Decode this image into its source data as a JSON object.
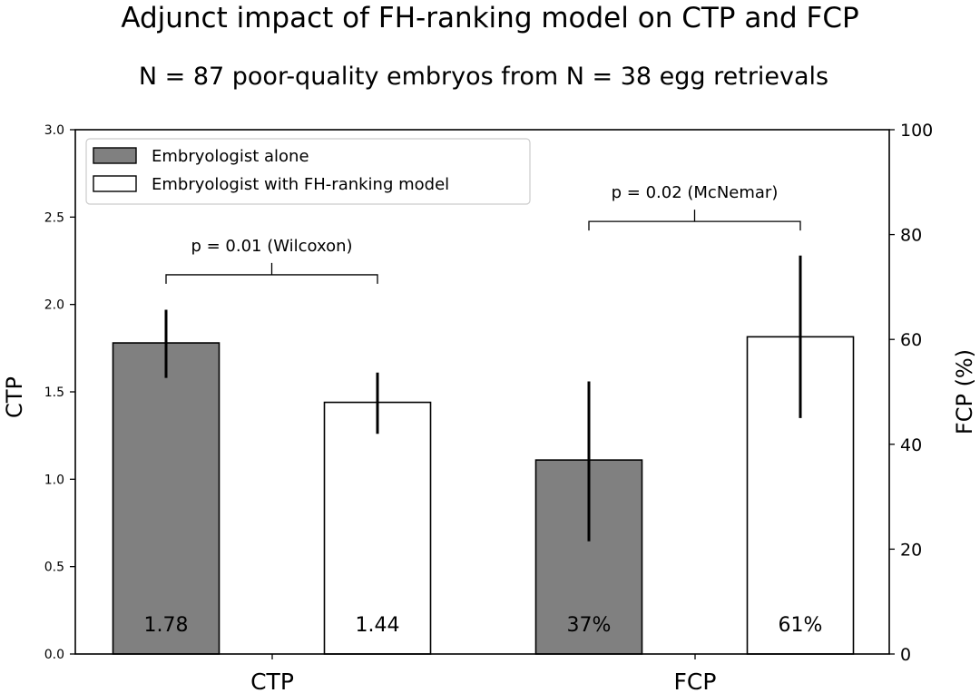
{
  "chart_data": {
    "type": "bar",
    "title": "Adjunct impact of FH-ranking model on CTP and FCP",
    "subtitle": "N = 87 poor-quality embryos from N = 38 egg retrievals",
    "categories": [
      "CTP",
      "FCP"
    ],
    "ylabel_left": "CTP",
    "ylabel_right": "FCP (%)",
    "ylim_left": [
      0,
      3.0
    ],
    "ylim_right": [
      0,
      100
    ],
    "yticks_left": [
      "0.0",
      "0.5",
      "1.0",
      "1.5",
      "2.0",
      "2.5",
      "3.0"
    ],
    "yticks_right": [
      "0",
      "20",
      "40",
      "60",
      "80",
      "100"
    ],
    "grid": false,
    "legend_position": "top-left",
    "series": [
      {
        "name": "Embryologist alone",
        "color": "#808080",
        "ctp": {
          "value": 1.78,
          "err_low": 1.58,
          "err_high": 1.97,
          "label": "1.78"
        },
        "fcp": {
          "value": 37,
          "err_low": 21.5,
          "err_high": 52,
          "label": "37%"
        }
      },
      {
        "name": "Embryologist with FH-ranking model",
        "color": "#ffffff",
        "ctp": {
          "value": 1.44,
          "err_low": 1.26,
          "err_high": 1.61,
          "label": "1.44"
        },
        "fcp": {
          "value": 60.5,
          "err_low": 45,
          "err_high": 76,
          "label": "61%"
        }
      }
    ],
    "annotations": [
      {
        "category": "CTP",
        "text": "p = 0.01 (Wilcoxon)",
        "bracket_value": 2.17,
        "axis": "left"
      },
      {
        "category": "FCP",
        "text": "p = 0.02 (McNemar)",
        "bracket_value": 82.5,
        "axis": "right"
      }
    ]
  }
}
